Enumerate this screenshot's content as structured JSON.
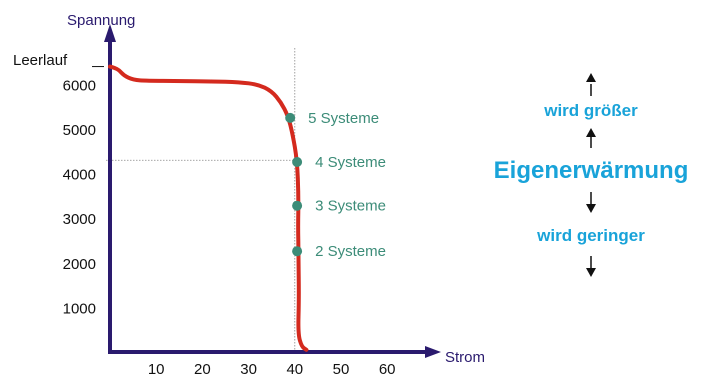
{
  "chart_data": {
    "type": "line",
    "title": "",
    "ylabel": "Spannung",
    "xlabel": "Strom",
    "y_ticks": [
      1000,
      2000,
      3000,
      4000,
      5000,
      6000
    ],
    "x_ticks": [
      10,
      20,
      30,
      40,
      50,
      60
    ],
    "xlim": [
      0,
      70
    ],
    "ylim": [
      0,
      6700
    ],
    "grid": false,
    "open_circuit": {
      "label": "Leerlauf",
      "value": 6400
    },
    "series": [
      {
        "color": "#d42a1e",
        "points": [
          [
            0,
            6400
          ],
          [
            1,
            6370
          ],
          [
            2,
            6320
          ],
          [
            3,
            6200
          ],
          [
            5,
            6100
          ],
          [
            8,
            6080
          ],
          [
            15,
            6075
          ],
          [
            22,
            6070
          ],
          [
            28,
            6050
          ],
          [
            32,
            6000
          ],
          [
            35,
            5850
          ],
          [
            37,
            5600
          ],
          [
            38.5,
            5300
          ],
          [
            39.5,
            4900
          ],
          [
            40.5,
            4300
          ],
          [
            40.8,
            3500
          ],
          [
            40.7,
            2800
          ],
          [
            40.8,
            2200
          ],
          [
            40.9,
            1200
          ],
          [
            40.7,
            400
          ],
          [
            41.5,
            120
          ],
          [
            42.5,
            50
          ]
        ]
      }
    ],
    "marked_points": [
      {
        "label": "5 Systeme",
        "x": 39,
        "y": 5250
      },
      {
        "label": "4 Systeme",
        "x": 40.5,
        "y": 4260
      },
      {
        "label": "3 Systeme",
        "x": 40.5,
        "y": 3280
      },
      {
        "label": "2 Systeme",
        "x": 40.5,
        "y": 2260
      }
    ],
    "reference_lines": {
      "vertical_x": 40,
      "horizontal_y": 4300
    },
    "colors": {
      "axis": "#2a1a6e",
      "curve": "#d42a1e",
      "point": "#3c8c78",
      "point_label": "#3c8c78",
      "side_text": "#19a3d9"
    }
  },
  "side_panel": {
    "upper_text": "wird größer",
    "main_text": "Eigenerwärmung",
    "lower_text": "wird geringer"
  }
}
